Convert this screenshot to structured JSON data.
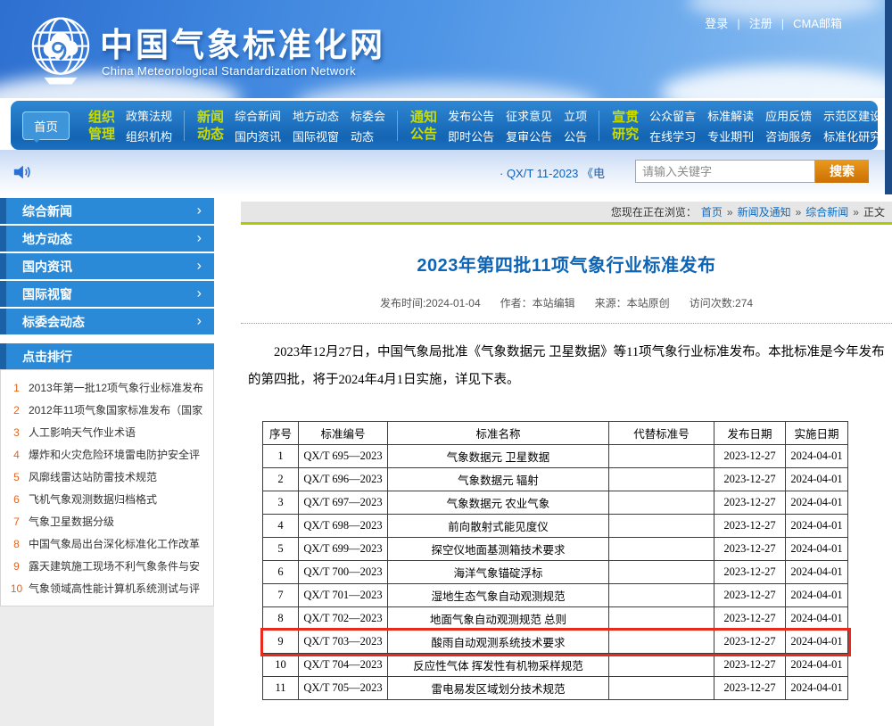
{
  "banner": {
    "site_title": "中国气象标准化网",
    "site_subtitle": "China Meteorological Standardization Network",
    "top_links": [
      "登录",
      "注册",
      "CMA邮箱"
    ]
  },
  "nav": {
    "home": "首页",
    "groups": [
      {
        "title_lines": [
          "组织",
          "管理"
        ],
        "cols": 1,
        "links": [
          "政策法规",
          "组织机构"
        ]
      },
      {
        "title_lines": [
          "新闻",
          "动态"
        ],
        "cols": 3,
        "links": [
          "综合新闻",
          "地方动态",
          "标委会",
          "国内资讯",
          "国际视窗",
          "动态"
        ]
      },
      {
        "title_lines": [
          "通知",
          "公告"
        ],
        "cols": 3,
        "links": [
          "发布公告",
          "征求意见",
          "立项",
          "即时公告",
          "复审公告",
          "公告"
        ]
      },
      {
        "title_lines": [
          "宣贯",
          "研究"
        ],
        "cols": 4,
        "links": [
          "公众留言",
          "标准解读",
          "应用反馈",
          "示范区建设",
          "在线学习",
          "专业期刊",
          "咨询服务",
          "标准化研究"
        ]
      }
    ]
  },
  "ticker": {
    "text": "· QX/T 11-2023 《电"
  },
  "search": {
    "placeholder": "请输入关键字",
    "button_label": "搜索"
  },
  "sidebar": {
    "menu": [
      "综合新闻",
      "地方动态",
      "国内资讯",
      "国际视窗",
      "标委会动态"
    ],
    "ranking_title": "点击排行",
    "ranking": [
      "2013年第一批12项气象行业标准发布",
      "2012年11项气象国家标准发布（国家",
      "人工影响天气作业术语",
      "爆炸和火灾危险环境雷电防护安全评",
      "风廓线雷达站防雷技术规范",
      "飞机气象观测数据归档格式",
      "气象卫星数据分级",
      "中国气象局出台深化标准化工作改革",
      "露天建筑施工现场不利气象条件与安",
      "气象领域高性能计算机系统测试与评"
    ]
  },
  "breadcrumb": {
    "prefix": "您现在正在浏览：",
    "links": [
      "首页",
      "新闻及通知",
      "综合新闻"
    ],
    "current": "正文",
    "separator": "»"
  },
  "article": {
    "title": "2023年第四批11项气象行业标准发布",
    "meta": [
      "发布时间:2024-01-04",
      "作者：本站编辑",
      "来源：本站原创",
      "访问次数:274"
    ],
    "paragraph": "2023年12月27日，中国气象局批准《气象数据元 卫星数据》等11项气象行业标准发布。本批标准是今年发布的第四批，将于2024年4月1日实施，详见下表。"
  },
  "table": {
    "headers": [
      "序号",
      "标准编号",
      "标准名称",
      "代替标准号",
      "发布日期",
      "实施日期"
    ],
    "highlight_row": 9,
    "rows": [
      [
        "1",
        "QX/T 695—2023",
        "气象数据元 卫星数据",
        "",
        "2023-12-27",
        "2024-04-01"
      ],
      [
        "2",
        "QX/T 696—2023",
        "气象数据元 辐射",
        "",
        "2023-12-27",
        "2024-04-01"
      ],
      [
        "3",
        "QX/T 697—2023",
        "气象数据元 农业气象",
        "",
        "2023-12-27",
        "2024-04-01"
      ],
      [
        "4",
        "QX/T 698—2023",
        "前向散射式能见度仪",
        "",
        "2023-12-27",
        "2024-04-01"
      ],
      [
        "5",
        "QX/T 699—2023",
        "探空仪地面基测箱技术要求",
        "",
        "2023-12-27",
        "2024-04-01"
      ],
      [
        "6",
        "QX/T 700—2023",
        "海洋气象锚碇浮标",
        "",
        "2023-12-27",
        "2024-04-01"
      ],
      [
        "7",
        "QX/T 701—2023",
        "湿地生态气象自动观测规范",
        "",
        "2023-12-27",
        "2024-04-01"
      ],
      [
        "8",
        "QX/T 702—2023",
        "地面气象自动观测规范 总则",
        "",
        "2023-12-27",
        "2024-04-01"
      ],
      [
        "9",
        "QX/T 703—2023",
        "酸雨自动观测系统技术要求",
        "",
        "2023-12-27",
        "2024-04-01"
      ],
      [
        "10",
        "QX/T 704—2023",
        "反应性气体 挥发性有机物采样规范",
        "",
        "2023-12-27",
        "2024-04-01"
      ],
      [
        "11",
        "QX/T 705—2023",
        "雷电易发区域划分技术规范",
        "",
        "2023-12-27",
        "2024-04-01"
      ]
    ]
  },
  "colors": {
    "nav_blue": "#1b6fbe",
    "sidebar_blue": "#2a8ad8",
    "highlight_red": "#e8291c",
    "button_orange": "#d5820f",
    "link_blue": "#0c6ac0",
    "green_line": "#b2c806",
    "title_blue": "#0e65b5"
  }
}
